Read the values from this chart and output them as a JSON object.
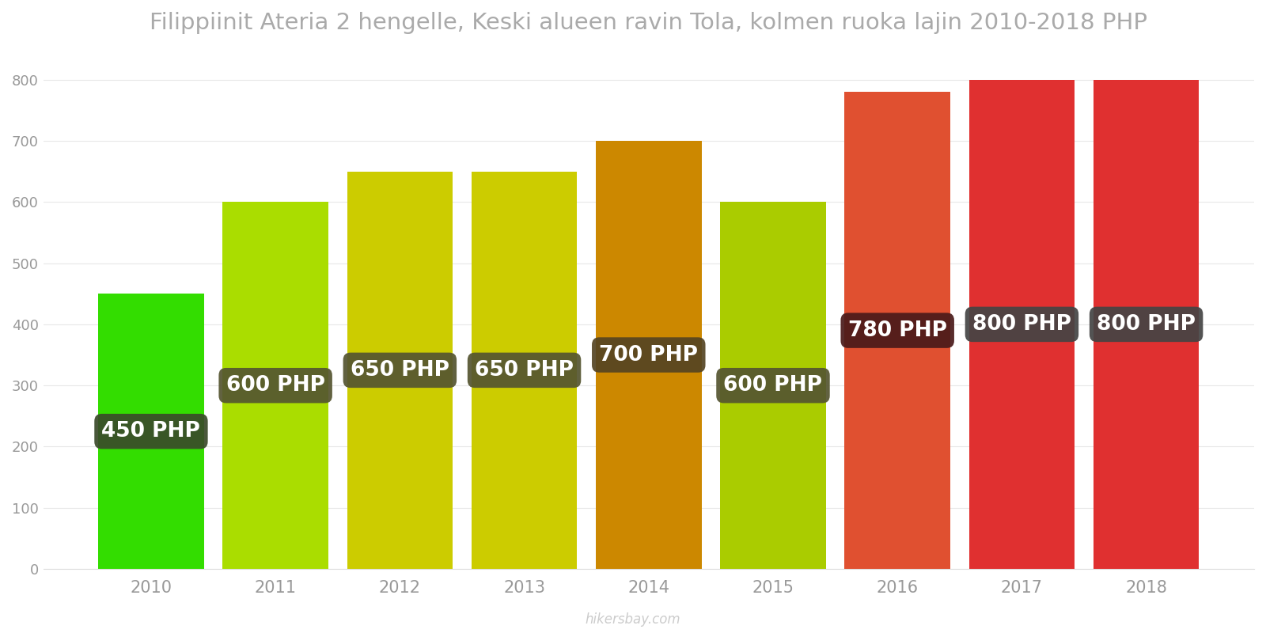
{
  "years": [
    2010,
    2011,
    2012,
    2013,
    2014,
    2015,
    2016,
    2017,
    2018
  ],
  "values": [
    450,
    600,
    650,
    650,
    700,
    600,
    780,
    800,
    800
  ],
  "bar_colors": [
    "#33dd00",
    "#aadd00",
    "#cccc00",
    "#cccc00",
    "#cc8800",
    "#aacc00",
    "#e05030",
    "#e03030",
    "#e03030"
  ],
  "label_bg_colors": [
    "#3a4a2a",
    "#555530",
    "#555530",
    "#555530",
    "#554422",
    "#555530",
    "#4a1a1a",
    "#444444",
    "#444444"
  ],
  "title": "Filippiinit Ateria 2 hengelle, Keski alueen ravin Tola, kolmen ruoka lajin 2010-2018 PHP",
  "ylim": [
    0,
    850
  ],
  "yticks": [
    0,
    100,
    200,
    300,
    400,
    500,
    600,
    700,
    800
  ],
  "watermark": "hikersbay.com",
  "title_fontsize": 21,
  "title_color": "#aaaaaa",
  "label_fontsize": 19,
  "label_text_color": "#ffffff",
  "bar_width": 0.85
}
